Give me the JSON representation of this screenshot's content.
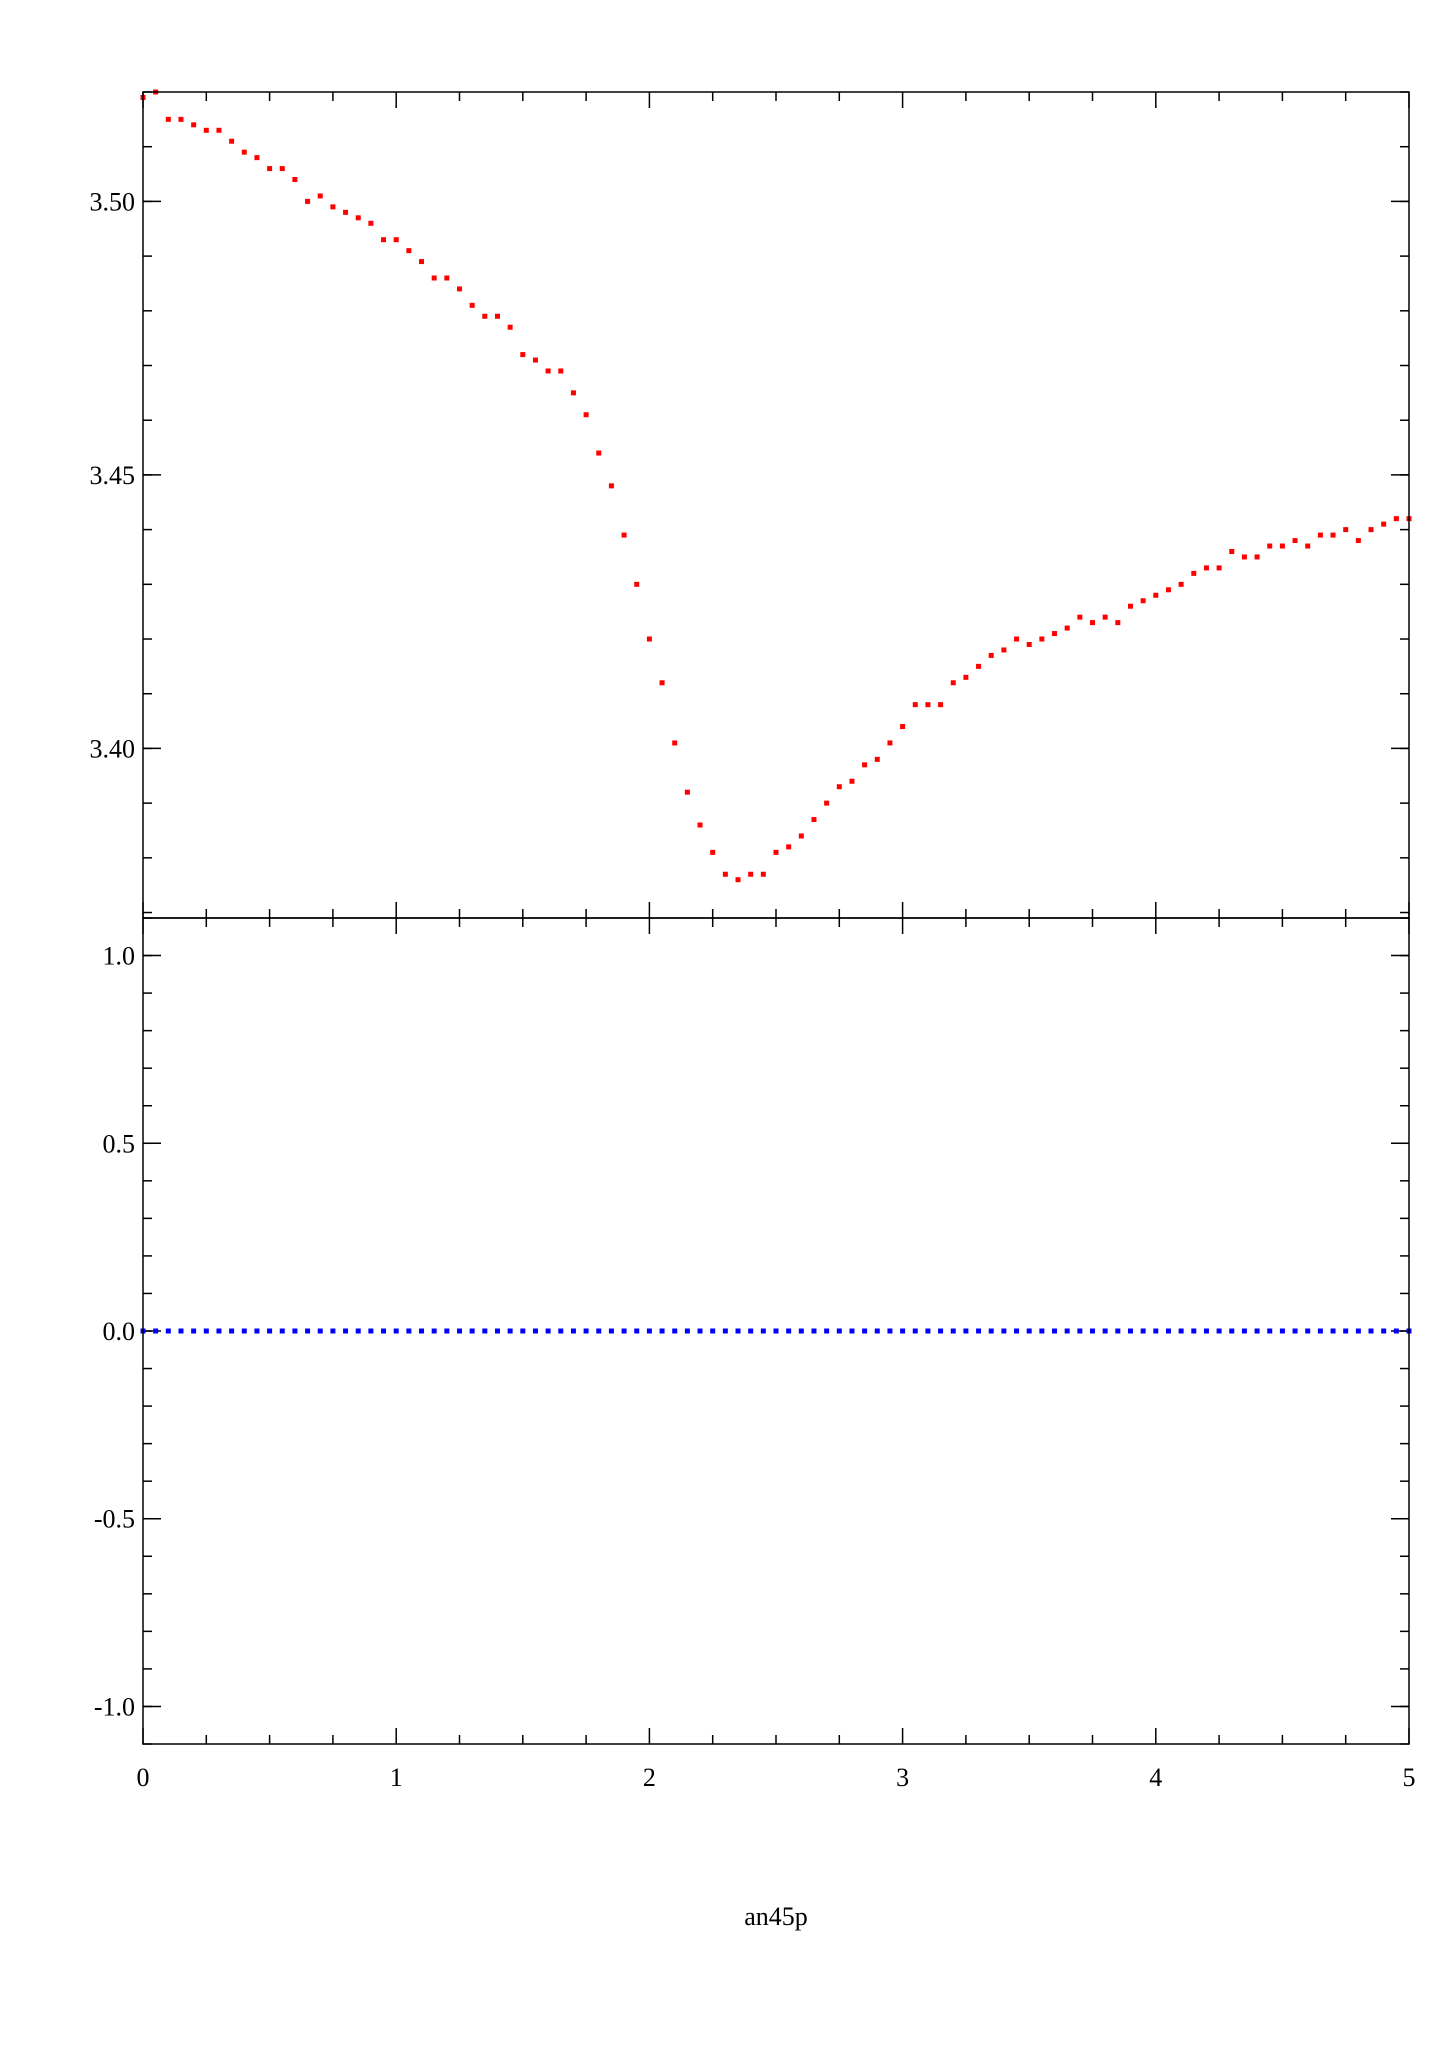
{
  "chart_data": [
    {
      "type": "scatter",
      "panel": "top",
      "title": "",
      "xlabel": "",
      "ylabel": "",
      "xlim": [
        0,
        5
      ],
      "ylim": [
        3.369,
        3.52
      ],
      "grid": false,
      "yticks": [
        3.4,
        3.45,
        3.5
      ],
      "ytick_labels": [
        "3.40",
        "3.45",
        "3.50"
      ],
      "color": "#ff0000",
      "series": [
        {
          "name": "",
          "x": [
            0.0,
            0.05,
            0.1,
            0.15,
            0.2,
            0.25,
            0.3,
            0.35,
            0.4,
            0.45,
            0.5,
            0.55,
            0.6,
            0.65,
            0.7,
            0.75,
            0.8,
            0.85,
            0.9,
            0.95,
            1.0,
            1.05,
            1.1,
            1.15,
            1.2,
            1.25,
            1.3,
            1.35,
            1.4,
            1.45,
            1.5,
            1.55,
            1.6,
            1.65,
            1.7,
            1.75,
            1.8,
            1.85,
            1.9,
            1.95,
            2.0,
            2.05,
            2.1,
            2.15,
            2.2,
            2.25,
            2.3,
            2.35,
            2.4,
            2.45,
            2.5,
            2.55,
            2.6,
            2.65,
            2.7,
            2.75,
            2.8,
            2.85,
            2.9,
            2.95,
            3.0,
            3.05,
            3.1,
            3.15,
            3.2,
            3.25,
            3.3,
            3.35,
            3.4,
            3.45,
            3.5,
            3.55,
            3.6,
            3.65,
            3.7,
            3.75,
            3.8,
            3.85,
            3.9,
            3.95,
            4.0,
            4.05,
            4.1,
            4.15,
            4.2,
            4.25,
            4.3,
            4.35,
            4.4,
            4.45,
            4.5,
            4.55,
            4.6,
            4.65,
            4.7,
            4.75,
            4.8,
            4.85,
            4.9,
            4.95,
            5.0
          ],
          "y": [
            3.519,
            3.52,
            3.515,
            3.515,
            3.514,
            3.513,
            3.513,
            3.511,
            3.509,
            3.508,
            3.506,
            3.506,
            3.504,
            3.5,
            3.501,
            3.499,
            3.498,
            3.497,
            3.496,
            3.493,
            3.493,
            3.491,
            3.489,
            3.486,
            3.486,
            3.484,
            3.481,
            3.479,
            3.479,
            3.477,
            3.472,
            3.471,
            3.469,
            3.469,
            3.465,
            3.461,
            3.454,
            3.448,
            3.439,
            3.43,
            3.42,
            3.412,
            3.401,
            3.392,
            3.386,
            3.381,
            3.377,
            3.376,
            3.377,
            3.377,
            3.381,
            3.382,
            3.384,
            3.387,
            3.39,
            3.393,
            3.394,
            3.397,
            3.398,
            3.401,
            3.404,
            3.408,
            3.408,
            3.408,
            3.412,
            3.413,
            3.415,
            3.417,
            3.418,
            3.42,
            3.419,
            3.42,
            3.421,
            3.422,
            3.424,
            3.423,
            3.424,
            3.423,
            3.426,
            3.427,
            3.428,
            3.429,
            3.43,
            3.432,
            3.433,
            3.433,
            3.436,
            3.435,
            3.435,
            3.437,
            3.437,
            3.438,
            3.437,
            3.439,
            3.439,
            3.44,
            3.438,
            3.44,
            3.441,
            3.442,
            3.442
          ]
        }
      ]
    },
    {
      "type": "scatter",
      "panel": "bottom",
      "title": "",
      "xlabel": "an45p",
      "ylabel": "",
      "xlim": [
        0,
        5
      ],
      "ylim": [
        -1.1,
        1.1
      ],
      "grid": false,
      "xticks": [
        0,
        1,
        2,
        3,
        4,
        5
      ],
      "xtick_labels": [
        "0",
        "1",
        "2",
        "3",
        "4",
        "5"
      ],
      "yticks": [
        -1.0,
        -0.5,
        0.0,
        0.5,
        1.0
      ],
      "ytick_labels": [
        "-1.0",
        "-0.5",
        "0.0",
        "0.5",
        "1.0"
      ],
      "color": "#0000ff",
      "series": [
        {
          "name": "",
          "x_start": 0,
          "x_end": 5,
          "x_step": 0.05,
          "y": 0.0
        }
      ]
    }
  ]
}
